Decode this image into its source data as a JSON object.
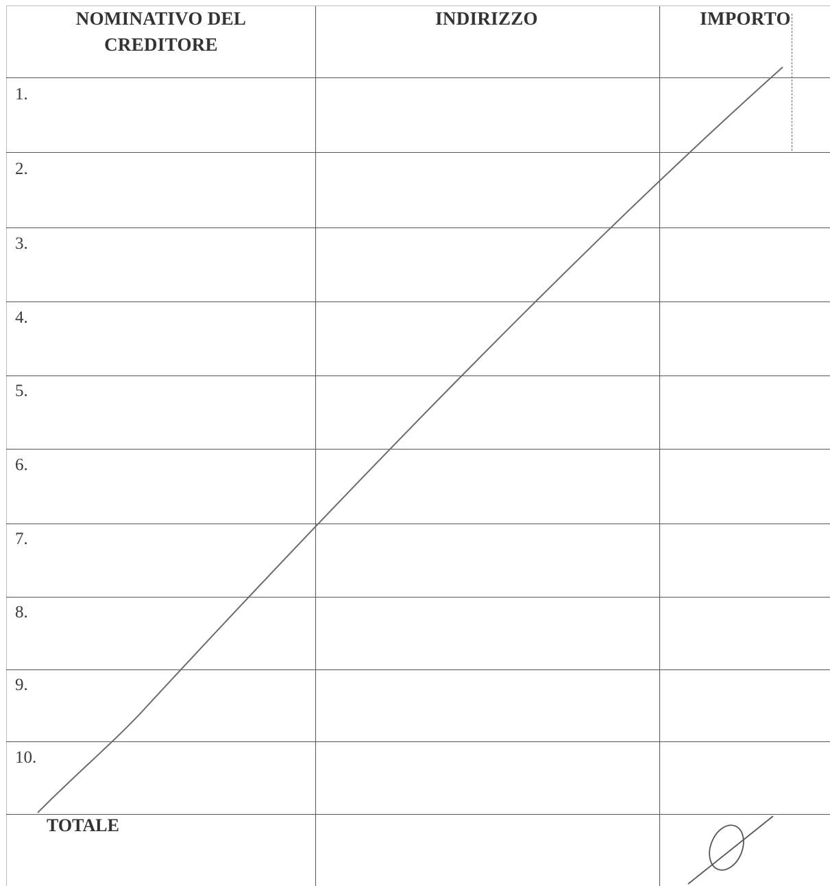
{
  "table": {
    "headers": {
      "creditor_line1": "NOMINATIVO DEL",
      "creditor_line2": "CREDITORE",
      "address": "INDIRIZZO",
      "amount": "IMPORTO"
    },
    "rows": [
      {
        "number": "1."
      },
      {
        "number": "2."
      },
      {
        "number": "3."
      },
      {
        "number": "4."
      },
      {
        "number": "5."
      },
      {
        "number": "6."
      },
      {
        "number": "7."
      },
      {
        "number": "8."
      },
      {
        "number": "9."
      },
      {
        "number": "10."
      }
    ],
    "total_label": "TOTALE"
  },
  "colors": {
    "line": "#555555",
    "strike": "#6a6a6a"
  }
}
